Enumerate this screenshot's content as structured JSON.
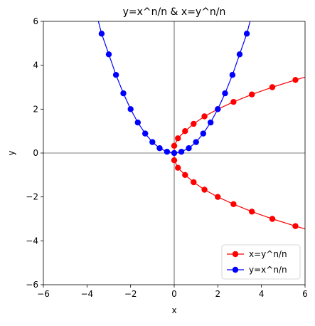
{
  "chart_data": {
    "type": "line",
    "title": "y=x^n/n & x=y^n/n",
    "xlabel": "x",
    "ylabel": "y",
    "xlim": [
      -6,
      6
    ],
    "ylim": [
      -6,
      6
    ],
    "xticks": [
      -6,
      -4,
      -2,
      0,
      2,
      4,
      6
    ],
    "yticks": [
      -6,
      -4,
      -2,
      0,
      2,
      4,
      6
    ],
    "xtick_labels": [
      "−6",
      "−4",
      "−2",
      "0",
      "2",
      "4",
      "6"
    ],
    "ytick_labels": [
      "−6",
      "−4",
      "−2",
      "0",
      "2",
      "4",
      "6"
    ],
    "grid": false,
    "zero_lines": true,
    "legend_position": "lower-right",
    "series": [
      {
        "name": "x=y^n/n",
        "color": "#ff0000",
        "marker": "circle",
        "points": [
          [
            0.0,
            -0.33
          ],
          [
            0.17,
            -0.67
          ],
          [
            0.5,
            -1.0
          ],
          [
            0.89,
            -1.33
          ],
          [
            1.39,
            -1.67
          ],
          [
            2.0,
            -2.0
          ],
          [
            2.72,
            -2.33
          ],
          [
            3.56,
            -2.67
          ],
          [
            4.5,
            -3.0
          ],
          [
            5.56,
            -3.33
          ],
          [
            6.72,
            -3.67
          ],
          [
            0.0,
            0.33
          ],
          [
            0.17,
            0.67
          ],
          [
            0.5,
            1.0
          ],
          [
            0.89,
            1.33
          ],
          [
            1.39,
            1.67
          ],
          [
            2.0,
            2.0
          ],
          [
            2.72,
            2.33
          ],
          [
            3.56,
            2.67
          ],
          [
            4.5,
            3.0
          ],
          [
            5.56,
            3.33
          ],
          [
            6.72,
            3.67
          ]
        ]
      },
      {
        "name": "y=x^n/n",
        "color": "#0000ff",
        "marker": "circle",
        "points": [
          [
            -3.67,
            6.72
          ],
          [
            -3.33,
            5.44
          ],
          [
            -3.0,
            4.5
          ],
          [
            -2.67,
            3.56
          ],
          [
            -2.33,
            2.72
          ],
          [
            -2.0,
            2.0
          ],
          [
            -1.67,
            1.39
          ],
          [
            -1.33,
            0.89
          ],
          [
            -1.0,
            0.5
          ],
          [
            -0.67,
            0.22
          ],
          [
            -0.33,
            0.06
          ],
          [
            0.0,
            0.0
          ],
          [
            0.33,
            0.06
          ],
          [
            0.67,
            0.22
          ],
          [
            1.0,
            0.5
          ],
          [
            1.33,
            0.89
          ],
          [
            1.67,
            1.39
          ],
          [
            2.0,
            2.0
          ],
          [
            2.33,
            2.72
          ],
          [
            2.67,
            3.56
          ],
          [
            3.0,
            4.5
          ],
          [
            3.33,
            5.44
          ],
          [
            3.67,
            6.72
          ]
        ]
      }
    ]
  }
}
